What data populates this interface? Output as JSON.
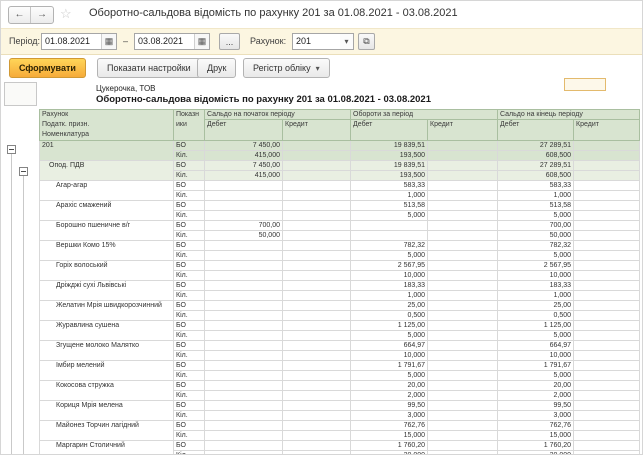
{
  "window": {
    "title": "Оборотно-сальдова відомість по рахунку 201 за 01.08.2021 - 03.08.2021"
  },
  "icons": {
    "back": "←",
    "forward": "→",
    "star": "☆",
    "calendar": "▦",
    "dropdown": "▾",
    "open_link": "⧉"
  },
  "filters": {
    "period_label": "Період:",
    "date_from": "01.08.2021",
    "range_separator": "–",
    "date_to": "03.08.2021",
    "more_label": "...",
    "account_label": "Рахунок:",
    "account_value": "201"
  },
  "toolbar": {
    "generate": "Сформувати",
    "settings": "Показати настройки",
    "print": "Друк",
    "register": "Регістр обліку"
  },
  "report": {
    "company": "Цукерочка, ТОВ",
    "title": "Оборотно-сальдова відомість по рахунку 201 за 01.08.2021 - 03.08.2021",
    "table": {
      "row_header_lines": [
        "Рахунок",
        "Податк. призн.",
        "Номенклатура"
      ],
      "indicators_header_lines": [
        "Показн",
        "ики"
      ],
      "groups": [
        {
          "label": "Сальдо на початок періоду",
          "columns": [
            "Дебет",
            "Кредит"
          ]
        },
        {
          "label": "Обороти за період",
          "columns": [
            "Дебет",
            "Кредит"
          ]
        },
        {
          "label": "Сальдо на кінець періоду",
          "columns": [
            "Дебет",
            "Кредит"
          ]
        }
      ],
      "indicator_labels": [
        "БО",
        "Кіл."
      ],
      "rows": [
        {
          "name": "201",
          "level": 0,
          "bo": [
            "7 450,00",
            "",
            "19 839,51",
            "",
            "27 289,51",
            ""
          ],
          "kil": [
            "415,000",
            "",
            "193,500",
            "",
            "608,500",
            ""
          ]
        },
        {
          "name": "Опод. ПДВ",
          "level": 1,
          "bo": [
            "7 450,00",
            "",
            "19 839,51",
            "",
            "27 289,51",
            ""
          ],
          "kil": [
            "415,000",
            "",
            "193,500",
            "",
            "608,500",
            ""
          ]
        },
        {
          "name": "Агар-агар",
          "level": 2,
          "bo": [
            "",
            "",
            "583,33",
            "",
            "583,33",
            ""
          ],
          "kil": [
            "",
            "",
            "1,000",
            "",
            "1,000",
            ""
          ]
        },
        {
          "name": "Арахіс смажений",
          "level": 2,
          "bo": [
            "",
            "",
            "513,58",
            "",
            "513,58",
            ""
          ],
          "kil": [
            "",
            "",
            "5,000",
            "",
            "5,000",
            ""
          ]
        },
        {
          "name": "Борошно пшеничне в/г",
          "level": 2,
          "bo": [
            "700,00",
            "",
            "",
            "",
            "700,00",
            ""
          ],
          "kil": [
            "50,000",
            "",
            "",
            "",
            "50,000",
            ""
          ]
        },
        {
          "name": "Вершки Комо 15%",
          "level": 2,
          "bo": [
            "",
            "",
            "782,32",
            "",
            "782,32",
            ""
          ],
          "kil": [
            "",
            "",
            "5,000",
            "",
            "5,000",
            ""
          ]
        },
        {
          "name": "Горіх волоський",
          "level": 2,
          "bo": [
            "",
            "",
            "2 567,95",
            "",
            "2 567,95",
            ""
          ],
          "kil": [
            "",
            "",
            "10,000",
            "",
            "10,000",
            ""
          ]
        },
        {
          "name": "Дріжджі сухі Львівські",
          "level": 2,
          "bo": [
            "",
            "",
            "183,33",
            "",
            "183,33",
            ""
          ],
          "kil": [
            "",
            "",
            "1,000",
            "",
            "1,000",
            ""
          ]
        },
        {
          "name": "Желатин Мрія швидкорозчинний",
          "level": 2,
          "bo": [
            "",
            "",
            "25,00",
            "",
            "25,00",
            ""
          ],
          "kil": [
            "",
            "",
            "0,500",
            "",
            "0,500",
            ""
          ]
        },
        {
          "name": "Журавлина сушена",
          "level": 2,
          "bo": [
            "",
            "",
            "1 125,00",
            "",
            "1 125,00",
            ""
          ],
          "kil": [
            "",
            "",
            "5,000",
            "",
            "5,000",
            ""
          ]
        },
        {
          "name": "Згущене молоко Малятко",
          "level": 2,
          "bo": [
            "",
            "",
            "664,97",
            "",
            "664,97",
            ""
          ],
          "kil": [
            "",
            "",
            "10,000",
            "",
            "10,000",
            ""
          ]
        },
        {
          "name": "Імбир мелений",
          "level": 2,
          "bo": [
            "",
            "",
            "1 791,67",
            "",
            "1 791,67",
            ""
          ],
          "kil": [
            "",
            "",
            "5,000",
            "",
            "5,000",
            ""
          ]
        },
        {
          "name": "Кокосова стружка",
          "level": 2,
          "bo": [
            "",
            "",
            "20,00",
            "",
            "20,00",
            ""
          ],
          "kil": [
            "",
            "",
            "2,000",
            "",
            "2,000",
            ""
          ]
        },
        {
          "name": "Кориця Мрія мелена",
          "level": 2,
          "bo": [
            "",
            "",
            "99,50",
            "",
            "99,50",
            ""
          ],
          "kil": [
            "",
            "",
            "3,000",
            "",
            "3,000",
            ""
          ]
        },
        {
          "name": "Майонез Торчин лагідний",
          "level": 2,
          "bo": [
            "",
            "",
            "762,76",
            "",
            "762,76",
            ""
          ],
          "kil": [
            "",
            "",
            "15,000",
            "",
            "15,000",
            ""
          ]
        },
        {
          "name": "Маргарин Столичний",
          "level": 2,
          "bo": [
            "",
            "",
            "1 760,20",
            "",
            "1 760,20",
            ""
          ],
          "kil": [
            "",
            "",
            "20,000",
            "",
            "20,000",
            ""
          ]
        }
      ]
    }
  },
  "colors": {
    "accent_orange": "#f6ab3a",
    "header_green": "#d8e4d0",
    "subgroup_green": "#e9efe2",
    "filter_bar": "#fcf6e1"
  }
}
